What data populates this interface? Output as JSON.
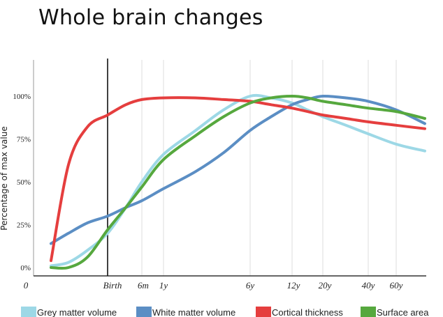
{
  "chart_data": {
    "type": "line",
    "title": "Whole brain changes",
    "xlabel": "",
    "ylabel": "Percentage of max value",
    "yticks": [
      "0%",
      "25%",
      "50%",
      "75%",
      "100%"
    ],
    "ylim": [
      0,
      100
    ],
    "xticks": [
      "0",
      "Birth",
      "6m",
      "1y",
      "6y",
      "12y",
      "20y",
      "40y",
      "60y"
    ],
    "grid": "vertical",
    "x": [
      "",
      "",
      "",
      "Birth",
      "",
      "6m",
      "1y",
      "",
      "",
      "6y",
      "",
      "12y",
      "",
      "20y",
      "",
      "40y",
      "60y",
      ""
    ],
    "series": [
      {
        "name": "Grey matter volume",
        "color": "#9dd8e6",
        "values": [
          1,
          3,
          10,
          20,
          35,
          50,
          66,
          80,
          92,
          100,
          99,
          96,
          92,
          88,
          83,
          78,
          72,
          68
        ]
      },
      {
        "name": "White matter volume",
        "color": "#5b8ec4",
        "values": [
          14,
          20,
          26,
          30,
          35,
          39,
          46,
          56,
          67,
          80,
          88,
          95,
          98,
          100,
          99,
          97,
          92,
          84
        ]
      },
      {
        "name": "Cortical thickness",
        "color": "#e53e3e",
        "values": [
          4,
          60,
          82,
          89,
          95,
          98,
          99,
          99,
          98,
          97,
          95,
          93,
          91,
          89,
          87,
          85,
          83,
          81
        ]
      },
      {
        "name": "Surface area",
        "color": "#56a83e",
        "values": [
          0,
          0,
          6,
          22,
          35,
          47,
          63,
          77,
          88,
          96,
          99,
          100,
          99,
          97,
          95,
          93,
          91,
          87
        ]
      }
    ],
    "legend_position": "bottom"
  }
}
